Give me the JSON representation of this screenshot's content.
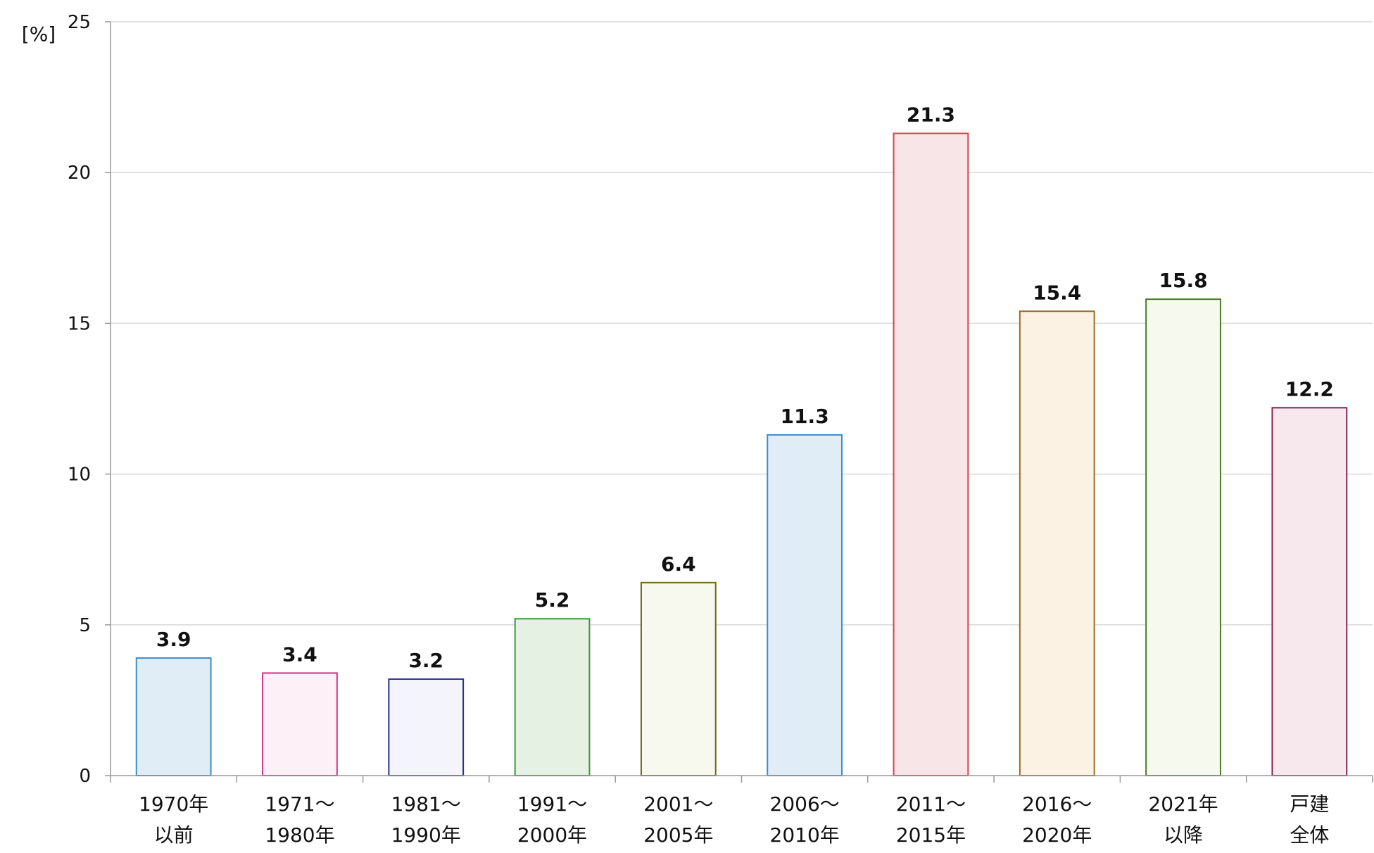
{
  "chart_data": {
    "type": "bar",
    "unit_label": "[%]",
    "categories": [
      [
        "1970年",
        "以前"
      ],
      [
        "1971〜",
        "1980年"
      ],
      [
        "1981〜",
        "1990年"
      ],
      [
        "1991〜",
        "2000年"
      ],
      [
        "2001〜",
        "2005年"
      ],
      [
        "2006〜",
        "2010年"
      ],
      [
        "2011〜",
        "2015年"
      ],
      [
        "2016〜",
        "2020年"
      ],
      [
        "2021年",
        "以降"
      ],
      [
        "戸建",
        "全体"
      ]
    ],
    "values": [
      3.9,
      3.4,
      3.2,
      5.2,
      6.4,
      11.3,
      21.3,
      15.4,
      15.8,
      12.2
    ],
    "value_labels": [
      "3.9",
      "3.4",
      "3.2",
      "5.2",
      "6.4",
      "11.3",
      "21.3",
      "15.4",
      "15.8",
      "12.2"
    ],
    "ylim": [
      0,
      25
    ],
    "yticks": [
      0,
      5,
      10,
      15,
      20,
      25
    ],
    "grid": true,
    "legend": "none",
    "bar_colors": [
      {
        "fill": "#e0edf6",
        "stroke": "#3a8dcc"
      },
      {
        "fill": "#fdf0f6",
        "stroke": "#d6368a"
      },
      {
        "fill": "#f3f4fc",
        "stroke": "#2a2e8c"
      },
      {
        "fill": "#e4f1e3",
        "stroke": "#3a9a3c"
      },
      {
        "fill": "#f7f9ee",
        "stroke": "#6b6b1f"
      },
      {
        "fill": "#e1edf6",
        "stroke": "#3a8dcc"
      },
      {
        "fill": "#f7e5e7",
        "stroke": "#d9404b"
      },
      {
        "fill": "#fcf2e4",
        "stroke": "#9c6a22"
      },
      {
        "fill": "#f5f9ee",
        "stroke": "#4a7a22"
      },
      {
        "fill": "#f7e8ee",
        "stroke": "#8a1f55"
      }
    ],
    "axis_color": "#999999",
    "grid_color": "#d9d9d9"
  }
}
